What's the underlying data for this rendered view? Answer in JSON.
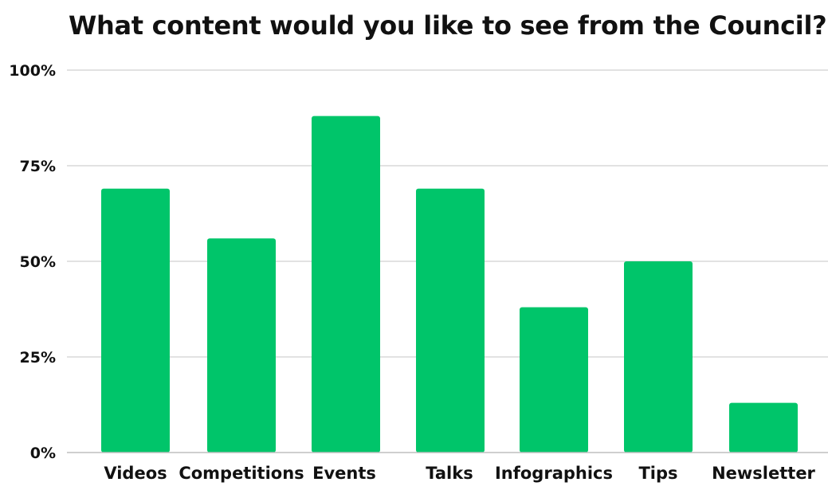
{
  "chart_data": {
    "type": "bar",
    "title": "What content would you like to see from the Council?",
    "xlabel": "",
    "ylabel": "",
    "categories": [
      "Videos",
      "Competitions",
      "Events",
      "Talks",
      "Infographics",
      "Tips",
      "Newsletter"
    ],
    "values": [
      69,
      56,
      88,
      69,
      38,
      50,
      13
    ],
    "ylim": [
      0,
      100
    ],
    "yticks": [
      0,
      25,
      50,
      75,
      100
    ],
    "ytick_labels": [
      "0%",
      "25%",
      "50%",
      "75%",
      "100%"
    ],
    "bar_color": "#00C56A",
    "grid": true,
    "legend": "none"
  }
}
